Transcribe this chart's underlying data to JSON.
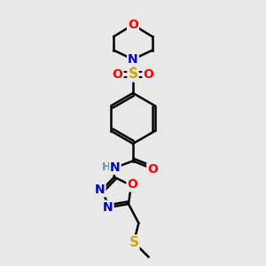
{
  "bg_color": "#e8e8e8",
  "atom_colors": {
    "C": "#000000",
    "N": "#0000cc",
    "O": "#ff0000",
    "S": "#ccaa00",
    "H": "#5f9ea0"
  },
  "line_color": "#000000",
  "line_width": 1.8,
  "figsize": [
    3.0,
    3.0
  ],
  "dpi": 100
}
